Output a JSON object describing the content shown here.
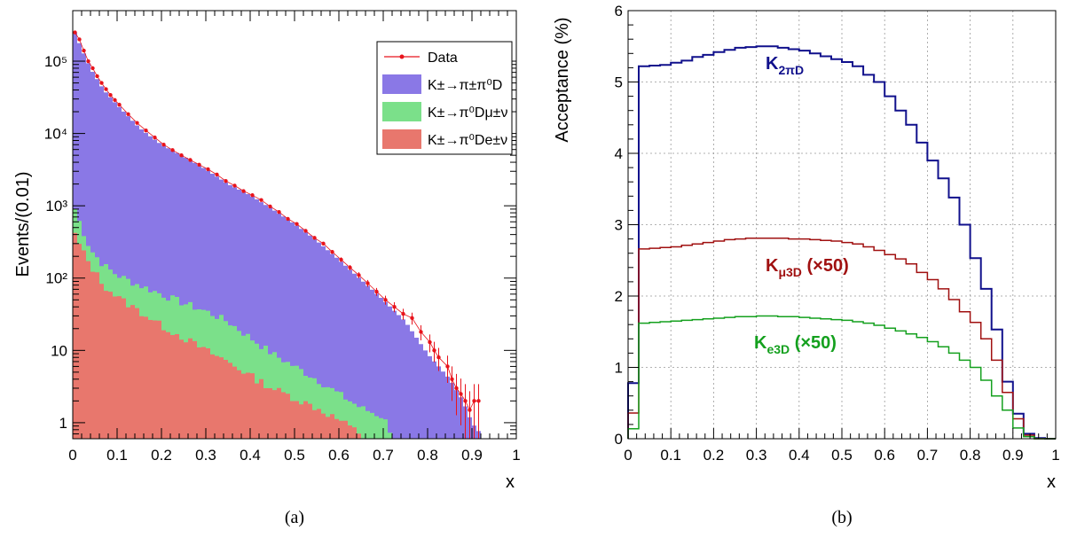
{
  "captions": [
    "(a)",
    "(b)"
  ],
  "chart_data": [
    {
      "type": "histogram",
      "panel": "(a)",
      "ylabel": "Events/(0.01)",
      "xlabel": "x",
      "xlim": [
        0,
        1
      ],
      "ylim": [
        0.6,
        500000
      ],
      "yscale": "log",
      "grid": false,
      "legend_position": "top-right",
      "x_ticks": [
        "0",
        "0.1",
        "0.2",
        "0.3",
        "0.4",
        "0.5",
        "0.6",
        "0.7",
        "0.8",
        "0.9",
        "1"
      ],
      "y_ticks": [
        {
          "v": 1,
          "label": "1"
        },
        {
          "v": 10,
          "label": "10"
        },
        {
          "v": 100,
          "label": "10²"
        },
        {
          "v": 1000,
          "label": "10³"
        },
        {
          "v": 10000,
          "label": "10⁴"
        },
        {
          "v": 100000,
          "label": "10⁵"
        }
      ],
      "legend": [
        {
          "key": "data",
          "label": "Data",
          "color": "#e8141c"
        },
        {
          "key": "k2pi",
          "label": "K±→π±π⁰D",
          "color": "#8a78e6"
        },
        {
          "key": "kmu3",
          "label": "K±→π⁰Dμ±ν",
          "color": "#7be08a"
        },
        {
          "key": "ke3",
          "label": "K±→π⁰De±ν",
          "color": "#e8776d"
        }
      ],
      "knots": {
        "total": [
          [
            0.005,
            250000
          ],
          [
            0.02,
            150000
          ],
          [
            0.04,
            80000
          ],
          [
            0.07,
            40000
          ],
          [
            0.1,
            25000
          ],
          [
            0.15,
            12000
          ],
          [
            0.2,
            7000
          ],
          [
            0.25,
            4800
          ],
          [
            0.3,
            3200
          ],
          [
            0.35,
            2000
          ],
          [
            0.4,
            1400
          ],
          [
            0.45,
            900
          ],
          [
            0.5,
            560
          ],
          [
            0.55,
            330
          ],
          [
            0.6,
            180
          ],
          [
            0.65,
            95
          ],
          [
            0.7,
            50
          ],
          [
            0.75,
            25
          ],
          [
            0.8,
            9
          ],
          [
            0.85,
            4
          ],
          [
            0.88,
            2
          ],
          [
            0.9,
            1
          ],
          [
            0.92,
            0.7
          ]
        ],
        "mu_top": [
          [
            0.005,
            900
          ],
          [
            0.02,
            500
          ],
          [
            0.04,
            250
          ],
          [
            0.07,
            150
          ],
          [
            0.1,
            110
          ],
          [
            0.15,
            80
          ],
          [
            0.2,
            60
          ],
          [
            0.25,
            45
          ],
          [
            0.3,
            35
          ],
          [
            0.35,
            25
          ],
          [
            0.4,
            15
          ],
          [
            0.45,
            9
          ],
          [
            0.5,
            6
          ],
          [
            0.55,
            4
          ],
          [
            0.6,
            2.5
          ],
          [
            0.65,
            1.6
          ],
          [
            0.7,
            1.2
          ],
          [
            0.72,
            0.7
          ]
        ],
        "e_top": [
          [
            0.005,
            400
          ],
          [
            0.02,
            250
          ],
          [
            0.04,
            150
          ],
          [
            0.07,
            80
          ],
          [
            0.1,
            55
          ],
          [
            0.15,
            35
          ],
          [
            0.2,
            22
          ],
          [
            0.25,
            15
          ],
          [
            0.3,
            10
          ],
          [
            0.35,
            7
          ],
          [
            0.4,
            4.5
          ],
          [
            0.45,
            3
          ],
          [
            0.5,
            2.2
          ],
          [
            0.55,
            1.6
          ],
          [
            0.6,
            1.1
          ],
          [
            0.65,
            0.7
          ]
        ]
      },
      "data_points": [
        [
          0.005,
          250000
        ],
        [
          0.015,
          200000
        ],
        [
          0.025,
          140000
        ],
        [
          0.035,
          100000
        ],
        [
          0.045,
          80000
        ],
        [
          0.055,
          62000
        ],
        [
          0.065,
          50000
        ],
        [
          0.075,
          41000
        ],
        [
          0.085,
          34000
        ],
        [
          0.095,
          29000
        ],
        [
          0.105,
          25000
        ],
        [
          0.125,
          18500
        ],
        [
          0.145,
          14000
        ],
        [
          0.165,
          11000
        ],
        [
          0.185,
          8800
        ],
        [
          0.205,
          7000
        ],
        [
          0.225,
          5900
        ],
        [
          0.245,
          5000
        ],
        [
          0.265,
          4300
        ],
        [
          0.285,
          3700
        ],
        [
          0.305,
          3200
        ],
        [
          0.325,
          2700
        ],
        [
          0.345,
          2200
        ],
        [
          0.365,
          1900
        ],
        [
          0.385,
          1600
        ],
        [
          0.405,
          1400
        ],
        [
          0.425,
          1200
        ],
        [
          0.445,
          980
        ],
        [
          0.465,
          820
        ],
        [
          0.485,
          660
        ],
        [
          0.505,
          560
        ],
        [
          0.525,
          450
        ],
        [
          0.545,
          360
        ],
        [
          0.565,
          300
        ],
        [
          0.585,
          230
        ],
        [
          0.605,
          180
        ],
        [
          0.625,
          140
        ],
        [
          0.645,
          110
        ],
        [
          0.665,
          85
        ],
        [
          0.685,
          65
        ],
        [
          0.705,
          50
        ],
        [
          0.725,
          40
        ],
        [
          0.745,
          32
        ],
        [
          0.765,
          28
        ],
        [
          0.785,
          18
        ],
        [
          0.805,
          13
        ],
        [
          0.815,
          10
        ],
        [
          0.825,
          8
        ],
        [
          0.845,
          6
        ],
        [
          0.855,
          4
        ],
        [
          0.865,
          3
        ],
        [
          0.875,
          2.5
        ],
        [
          0.885,
          2
        ],
        [
          0.895,
          1.5
        ],
        [
          0.905,
          2
        ],
        [
          0.915,
          2
        ]
      ]
    },
    {
      "type": "line",
      "panel": "(b)",
      "ylabel": "Acceptance (%)",
      "xlabel": "x",
      "xlim": [
        0,
        1
      ],
      "ylim": [
        0,
        6
      ],
      "grid": true,
      "x_ticks": [
        "0",
        "0.1",
        "0.2",
        "0.3",
        "0.4",
        "0.5",
        "0.6",
        "0.7",
        "0.8",
        "0.9",
        "1"
      ],
      "y_ticks": [
        "0",
        "1",
        "2",
        "3",
        "4",
        "5",
        "6"
      ],
      "series": [
        {
          "name": "K2πD",
          "label_main": "K",
          "label_sub": "2πD",
          "label_suffix": "",
          "color": "#10108c",
          "x": [
            0,
            0.025,
            0.05,
            0.075,
            0.1,
            0.125,
            0.15,
            0.175,
            0.2,
            0.225,
            0.25,
            0.275,
            0.3,
            0.325,
            0.35,
            0.375,
            0.4,
            0.425,
            0.45,
            0.475,
            0.5,
            0.525,
            0.55,
            0.575,
            0.6,
            0.625,
            0.65,
            0.675,
            0.7,
            0.725,
            0.75,
            0.775,
            0.8,
            0.825,
            0.85,
            0.875,
            0.9,
            0.925,
            0.95,
            0.975
          ],
          "values": [
            0.78,
            5.22,
            5.23,
            5.24,
            5.27,
            5.3,
            5.35,
            5.38,
            5.42,
            5.45,
            5.48,
            5.49,
            5.5,
            5.5,
            5.48,
            5.46,
            5.44,
            5.4,
            5.36,
            5.32,
            5.28,
            5.22,
            5.1,
            5.0,
            4.8,
            4.6,
            4.4,
            4.15,
            3.9,
            3.65,
            3.38,
            3.0,
            2.53,
            2.1,
            1.53,
            0.8,
            0.35,
            0.07,
            0.01,
            0.0
          ]
        },
        {
          "name": "Kμ3D (×50)",
          "label_main": "K",
          "label_sub": "μ3D",
          "label_suffix": " (×50)",
          "color": "#a01010",
          "x": [
            0,
            0.025,
            0.05,
            0.075,
            0.1,
            0.125,
            0.15,
            0.175,
            0.2,
            0.225,
            0.25,
            0.275,
            0.3,
            0.325,
            0.35,
            0.375,
            0.4,
            0.425,
            0.45,
            0.475,
            0.5,
            0.525,
            0.55,
            0.575,
            0.6,
            0.625,
            0.65,
            0.675,
            0.7,
            0.725,
            0.75,
            0.775,
            0.8,
            0.825,
            0.85,
            0.875,
            0.9,
            0.925,
            0.95,
            0.975
          ],
          "values": [
            0.36,
            2.66,
            2.67,
            2.68,
            2.69,
            2.71,
            2.73,
            2.75,
            2.77,
            2.79,
            2.8,
            2.81,
            2.81,
            2.81,
            2.81,
            2.8,
            2.8,
            2.79,
            2.78,
            2.77,
            2.75,
            2.73,
            2.69,
            2.64,
            2.58,
            2.52,
            2.45,
            2.33,
            2.23,
            2.1,
            1.95,
            1.78,
            1.63,
            1.4,
            1.1,
            0.65,
            0.28,
            0.05,
            0.0,
            0.0
          ]
        },
        {
          "name": "Ke3D (×50)",
          "label_main": "K",
          "label_sub": "e3D",
          "label_suffix": " (×50)",
          "color": "#14a01e",
          "x": [
            0,
            0.025,
            0.05,
            0.075,
            0.1,
            0.125,
            0.15,
            0.175,
            0.2,
            0.225,
            0.25,
            0.275,
            0.3,
            0.325,
            0.35,
            0.375,
            0.4,
            0.425,
            0.45,
            0.475,
            0.5,
            0.525,
            0.55,
            0.575,
            0.6,
            0.625,
            0.65,
            0.675,
            0.7,
            0.725,
            0.75,
            0.775,
            0.8,
            0.825,
            0.85,
            0.875,
            0.9,
            0.925,
            0.95,
            0.975
          ],
          "values": [
            0.14,
            1.62,
            1.63,
            1.64,
            1.65,
            1.66,
            1.67,
            1.68,
            1.69,
            1.7,
            1.71,
            1.71,
            1.72,
            1.72,
            1.71,
            1.71,
            1.7,
            1.69,
            1.68,
            1.67,
            1.66,
            1.64,
            1.62,
            1.59,
            1.55,
            1.51,
            1.47,
            1.42,
            1.36,
            1.29,
            1.2,
            1.1,
            1.0,
            0.82,
            0.6,
            0.4,
            0.15,
            0.03,
            0.0,
            0.0
          ]
        }
      ]
    }
  ]
}
